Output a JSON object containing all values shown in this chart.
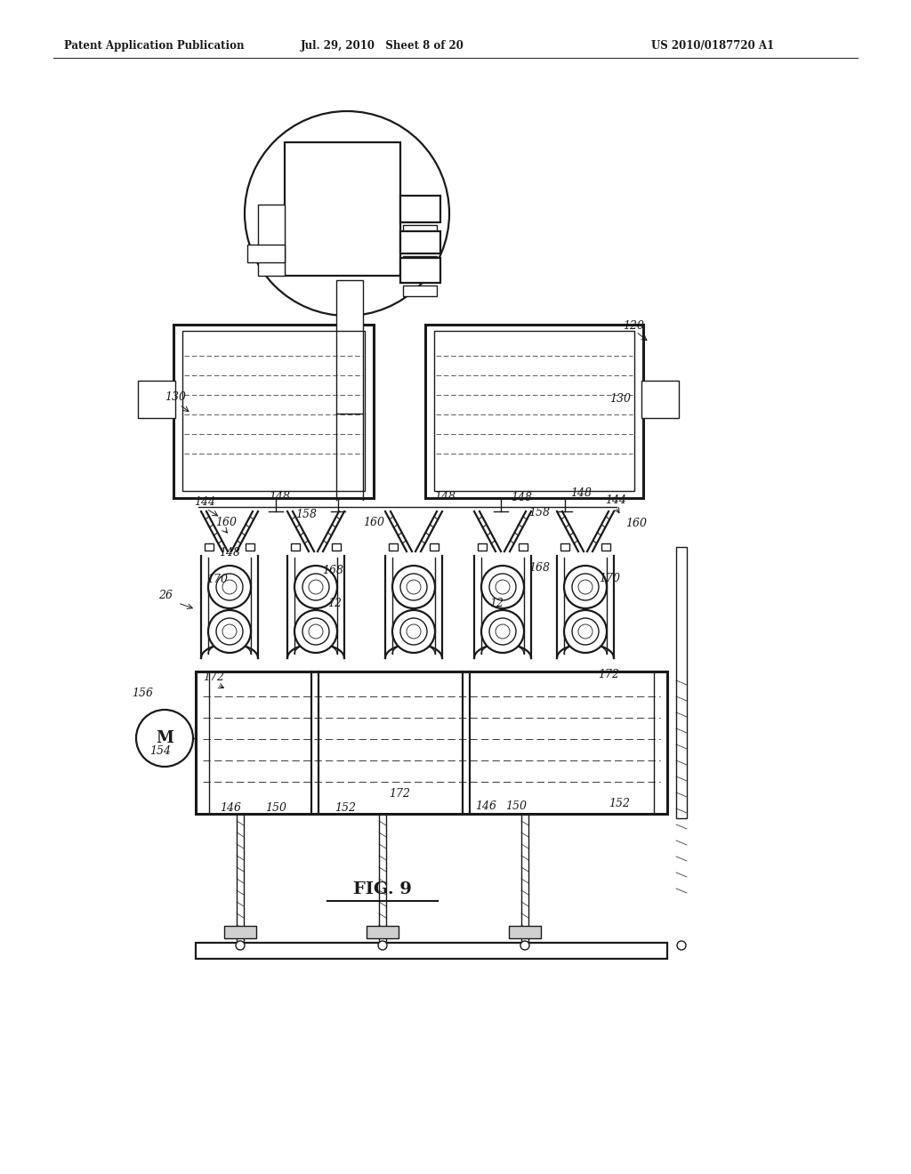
{
  "bg_color": "#ffffff",
  "line_color": "#1a1a1a",
  "header_left": "Patent Application Publication",
  "header_mid": "Jul. 29, 2010   Sheet 8 of 20",
  "header_right": "US 2010/0187720 A1",
  "fig_label": "FIG. 9"
}
